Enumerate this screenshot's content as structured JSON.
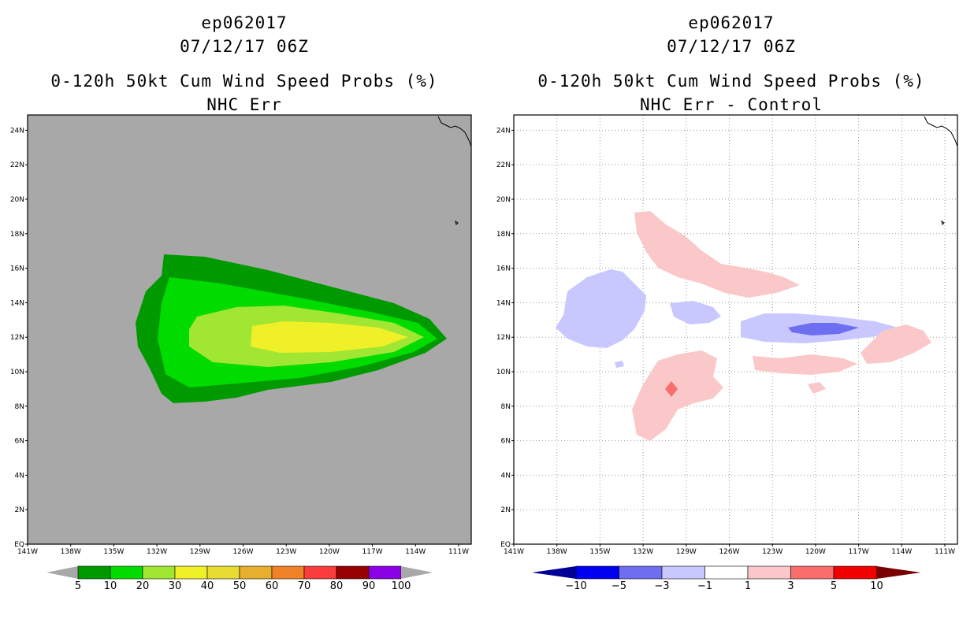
{
  "panels": [
    {
      "id": "left",
      "storm_id": "ep062017",
      "datetime": "07/12/17 06Z",
      "product": "0-120h 50kt Cum Wind Speed Probs (%)",
      "subtitle": "NHC Err",
      "background_color": "#a8a8a8",
      "grid": false,
      "colorbar": {
        "labels": [
          "5",
          "10",
          "20",
          "30",
          "40",
          "50",
          "60",
          "70",
          "80",
          "90",
          "100"
        ],
        "colors": [
          "#009a00",
          "#00dc00",
          "#a0e632",
          "#f0f028",
          "#e6dc32",
          "#e6af2d",
          "#f08228",
          "#fa3c3c",
          "#960000",
          "#8c00e6"
        ],
        "end_color": "#a8a8a8"
      }
    },
    {
      "id": "right",
      "storm_id": "ep062017",
      "datetime": "07/12/17 06Z",
      "product": "0-120h 50kt Cum Wind Speed Probs (%)",
      "subtitle": "NHC Err - Control",
      "background_color": "#ffffff",
      "grid": true,
      "colorbar": {
        "labels": [
          "-10",
          "-5",
          "-3",
          "-1",
          "1",
          "3",
          "5",
          "10"
        ],
        "colors": [
          "#0000f0",
          "#6e6ef0",
          "#c8c8ff",
          "#ffffff",
          "#fac8c8",
          "#fa6e6e",
          "#f00000"
        ],
        "low_end_color": "#000096",
        "high_end_color": "#780000"
      }
    }
  ],
  "axes": {
    "lat_labels": [
      "EQ",
      "2N",
      "4N",
      "6N",
      "8N",
      "10N",
      "12N",
      "14N",
      "16N",
      "18N",
      "20N",
      "22N",
      "24N"
    ],
    "lon_labels": [
      "141W",
      "138W",
      "135W",
      "132W",
      "129W",
      "126W",
      "123W",
      "120W",
      "117W",
      "114W",
      "111W"
    ]
  }
}
